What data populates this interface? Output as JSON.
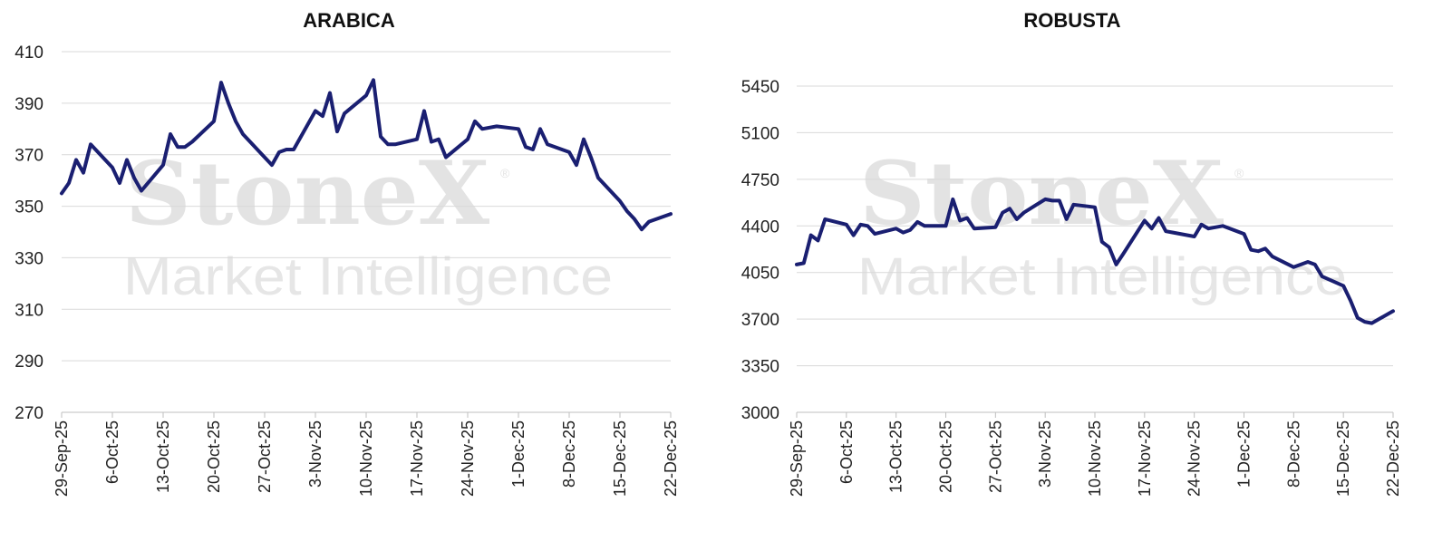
{
  "watermark": {
    "brand": "StoneX",
    "registered": "®",
    "subtitle": "Market Intelligence"
  },
  "colors": {
    "series": "#1a1f71",
    "grid": "#d9d9d9"
  },
  "chart_data": [
    {
      "type": "line",
      "title": "ARABICA",
      "ylim": [
        270,
        410
      ],
      "yticks": [
        270,
        290,
        310,
        330,
        350,
        370,
        390,
        410
      ],
      "xtick_labels": [
        "29-Sep-25",
        "6-Oct-25",
        "13-Oct-25",
        "20-Oct-25",
        "27-Oct-25",
        "3-Nov-25",
        "10-Nov-25",
        "17-Nov-25",
        "24-Nov-25",
        "1-Dec-25",
        "8-Dec-25",
        "15-Dec-25",
        "22-Dec-25"
      ],
      "series": [
        {
          "x": [
            "2025-09-29",
            "2025-09-30",
            "2025-10-01",
            "2025-10-02",
            "2025-10-03",
            "2025-10-06",
            "2025-10-07",
            "2025-10-08",
            "2025-10-09",
            "2025-10-10",
            "2025-10-13",
            "2025-10-14",
            "2025-10-15",
            "2025-10-16",
            "2025-10-17",
            "2025-10-20",
            "2025-10-21",
            "2025-10-22",
            "2025-10-23",
            "2025-10-24",
            "2025-10-27",
            "2025-10-28",
            "2025-10-29",
            "2025-10-30",
            "2025-10-31",
            "2025-11-03",
            "2025-11-04",
            "2025-11-05",
            "2025-11-06",
            "2025-11-07",
            "2025-11-10",
            "2025-11-11",
            "2025-11-12",
            "2025-11-13",
            "2025-11-14",
            "2025-11-17",
            "2025-11-18",
            "2025-11-19",
            "2025-11-20",
            "2025-11-21",
            "2025-11-24",
            "2025-11-25",
            "2025-11-26",
            "2025-11-28",
            "2025-12-01",
            "2025-12-02",
            "2025-12-03",
            "2025-12-04",
            "2025-12-05",
            "2025-12-08",
            "2025-12-09",
            "2025-12-10",
            "2025-12-11",
            "2025-12-12",
            "2025-12-15",
            "2025-12-16",
            "2025-12-17",
            "2025-12-18",
            "2025-12-19",
            "2025-12-22"
          ],
          "values": [
            355,
            359,
            368,
            363,
            374,
            365,
            359,
            368,
            361,
            356,
            366,
            378,
            373,
            373,
            375,
            383,
            398,
            390,
            383,
            378,
            369,
            366,
            371,
            372,
            372,
            387,
            385,
            394,
            379,
            386,
            393,
            399,
            377,
            374,
            374,
            376,
            387,
            375,
            376,
            369,
            376,
            383,
            380,
            381,
            380,
            373,
            372,
            380,
            374,
            371,
            366,
            376,
            369,
            361,
            352,
            348,
            345,
            341,
            344,
            347
          ]
        }
      ]
    },
    {
      "type": "line",
      "title": "ROBUSTA",
      "ylim": [
        3000,
        5450
      ],
      "yticks": [
        3000,
        3350,
        3700,
        4050,
        4400,
        4750,
        5100,
        5450
      ],
      "xtick_labels": [
        "29-Sep-25",
        "6-Oct-25",
        "13-Oct-25",
        "20-Oct-25",
        "27-Oct-25",
        "3-Nov-25",
        "10-Nov-25",
        "17-Nov-25",
        "24-Nov-25",
        "1-Dec-25",
        "8-Dec-25",
        "15-Dec-25",
        "22-Dec-25"
      ],
      "series": [
        {
          "x": [
            "2025-09-29",
            "2025-09-30",
            "2025-10-01",
            "2025-10-02",
            "2025-10-03",
            "2025-10-06",
            "2025-10-07",
            "2025-10-08",
            "2025-10-09",
            "2025-10-10",
            "2025-10-13",
            "2025-10-14",
            "2025-10-15",
            "2025-10-16",
            "2025-10-17",
            "2025-10-20",
            "2025-10-21",
            "2025-10-22",
            "2025-10-23",
            "2025-10-24",
            "2025-10-27",
            "2025-10-28",
            "2025-10-29",
            "2025-10-30",
            "2025-10-31",
            "2025-11-03",
            "2025-11-04",
            "2025-11-05",
            "2025-11-06",
            "2025-11-07",
            "2025-11-10",
            "2025-11-11",
            "2025-11-12",
            "2025-11-13",
            "2025-11-14",
            "2025-11-17",
            "2025-11-18",
            "2025-11-19",
            "2025-11-20",
            "2025-11-21",
            "2025-11-24",
            "2025-11-25",
            "2025-11-26",
            "2025-11-28",
            "2025-12-01",
            "2025-12-02",
            "2025-12-03",
            "2025-12-04",
            "2025-12-05",
            "2025-12-08",
            "2025-12-09",
            "2025-12-10",
            "2025-12-11",
            "2025-12-12",
            "2025-12-15",
            "2025-12-16",
            "2025-12-17",
            "2025-12-18",
            "2025-12-19",
            "2025-12-22"
          ],
          "values": [
            4110,
            4120,
            4330,
            4290,
            4450,
            4410,
            4330,
            4410,
            4400,
            4340,
            4380,
            4350,
            4370,
            4430,
            4400,
            4400,
            4600,
            4440,
            4460,
            4380,
            4390,
            4500,
            4530,
            4450,
            4500,
            4600,
            4590,
            4590,
            4450,
            4560,
            4540,
            4280,
            4240,
            4110,
            4190,
            4440,
            4380,
            4460,
            4360,
            4350,
            4320,
            4410,
            4380,
            4400,
            4340,
            4220,
            4210,
            4230,
            4170,
            4090,
            4110,
            4130,
            4110,
            4020,
            3950,
            3840,
            3710,
            3680,
            3670,
            3760
          ]
        }
      ]
    }
  ]
}
